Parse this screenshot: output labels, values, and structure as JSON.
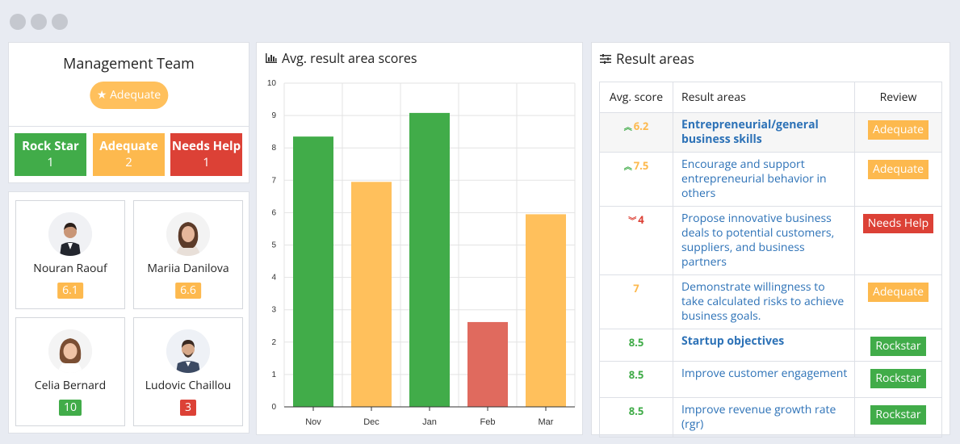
{
  "team": {
    "title": "Management Team",
    "badge_label": "Adequate",
    "stats": [
      {
        "label": "Rock Star",
        "count": "1",
        "color": "#41ac49"
      },
      {
        "label": "Adequate",
        "count": "2",
        "color": "#fdb94e"
      },
      {
        "label": "Needs Help",
        "count": "1",
        "color": "#dc4136"
      }
    ]
  },
  "members": [
    {
      "name": "Nouran Raouf",
      "score": "6.1",
      "color": "#fdb94e"
    },
    {
      "name": "Mariia Danilova",
      "score": "6.6",
      "color": "#fdb94e"
    },
    {
      "name": "Celia Bernard",
      "score": "10",
      "color": "#41ac49"
    },
    {
      "name": "Ludovic Chaillou",
      "score": "3",
      "color": "#dc4136"
    }
  ],
  "chart_panel": {
    "title": "Avg. result area scores"
  },
  "chart_data": {
    "type": "bar",
    "categories": [
      "Nov",
      "Dec",
      "Jan",
      "Feb",
      "Mar"
    ],
    "values": [
      8.35,
      6.95,
      9.08,
      2.62,
      5.95
    ],
    "colors": [
      "#41ac49",
      "#ffc05c",
      "#41ac49",
      "#e06a5e",
      "#ffc05c"
    ],
    "ylim": [
      0,
      10
    ],
    "yticks": [
      "0",
      "1",
      "2",
      "3",
      "4",
      "5",
      "6",
      "7",
      "8",
      "9",
      "10"
    ],
    "grid": true,
    "title": "",
    "xlabel": "",
    "ylabel": ""
  },
  "areas_panel": {
    "title": "Result areas",
    "headers": {
      "score": "Avg. score",
      "area": "Result areas",
      "review": "Review"
    },
    "rows": [
      {
        "trend": "up",
        "score": "6.2",
        "score_color": "orange",
        "area": "Entrepreneurial/general business skills",
        "bold": true,
        "review": "Adequate",
        "review_color": "#fdb94e"
      },
      {
        "trend": "up",
        "score": "7.5",
        "score_color": "orange",
        "area": "Encourage and support entrepreneurial behavior in others",
        "bold": false,
        "review": "Adequate",
        "review_color": "#fdb94e"
      },
      {
        "trend": "down",
        "score": "4",
        "score_color": "red",
        "area": "Propose innovative business deals to potential customers, suppliers, and business partners",
        "bold": false,
        "review": "Needs Help",
        "review_color": "#dc4136"
      },
      {
        "trend": "",
        "score": "7",
        "score_color": "orange",
        "area": "Demonstrate willingness to take calculated risks to achieve business goals.",
        "bold": false,
        "review": "Adequate",
        "review_color": "#fdb94e"
      },
      {
        "trend": "",
        "score": "8.5",
        "score_color": "green",
        "area": "Startup objectives",
        "bold": true,
        "review": "Rockstar",
        "review_color": "#41ac49"
      },
      {
        "trend": "",
        "score": "8.5",
        "score_color": "green",
        "area": "Improve customer engagement",
        "bold": false,
        "review": "Rockstar",
        "review_color": "#41ac49"
      },
      {
        "trend": "",
        "score": "8.5",
        "score_color": "green",
        "area": "Improve revenue growth rate (rgr)",
        "bold": false,
        "review": "Rockstar",
        "review_color": "#41ac49"
      }
    ]
  }
}
